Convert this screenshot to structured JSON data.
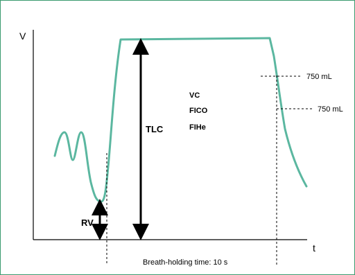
{
  "axes": {
    "y_label": "V",
    "x_label": "t"
  },
  "labels": {
    "tlc": "TLC",
    "rv": "RV",
    "vc": "VC",
    "fico": "FICO",
    "fihe": "FIHe",
    "vol_upper": "750 mL",
    "vol_lower": "750 mL",
    "breath_hold": "Breath-holding time: 10 s"
  },
  "colors": {
    "curve": "#5bb7a0",
    "frame": "#3a9a6e"
  }
}
